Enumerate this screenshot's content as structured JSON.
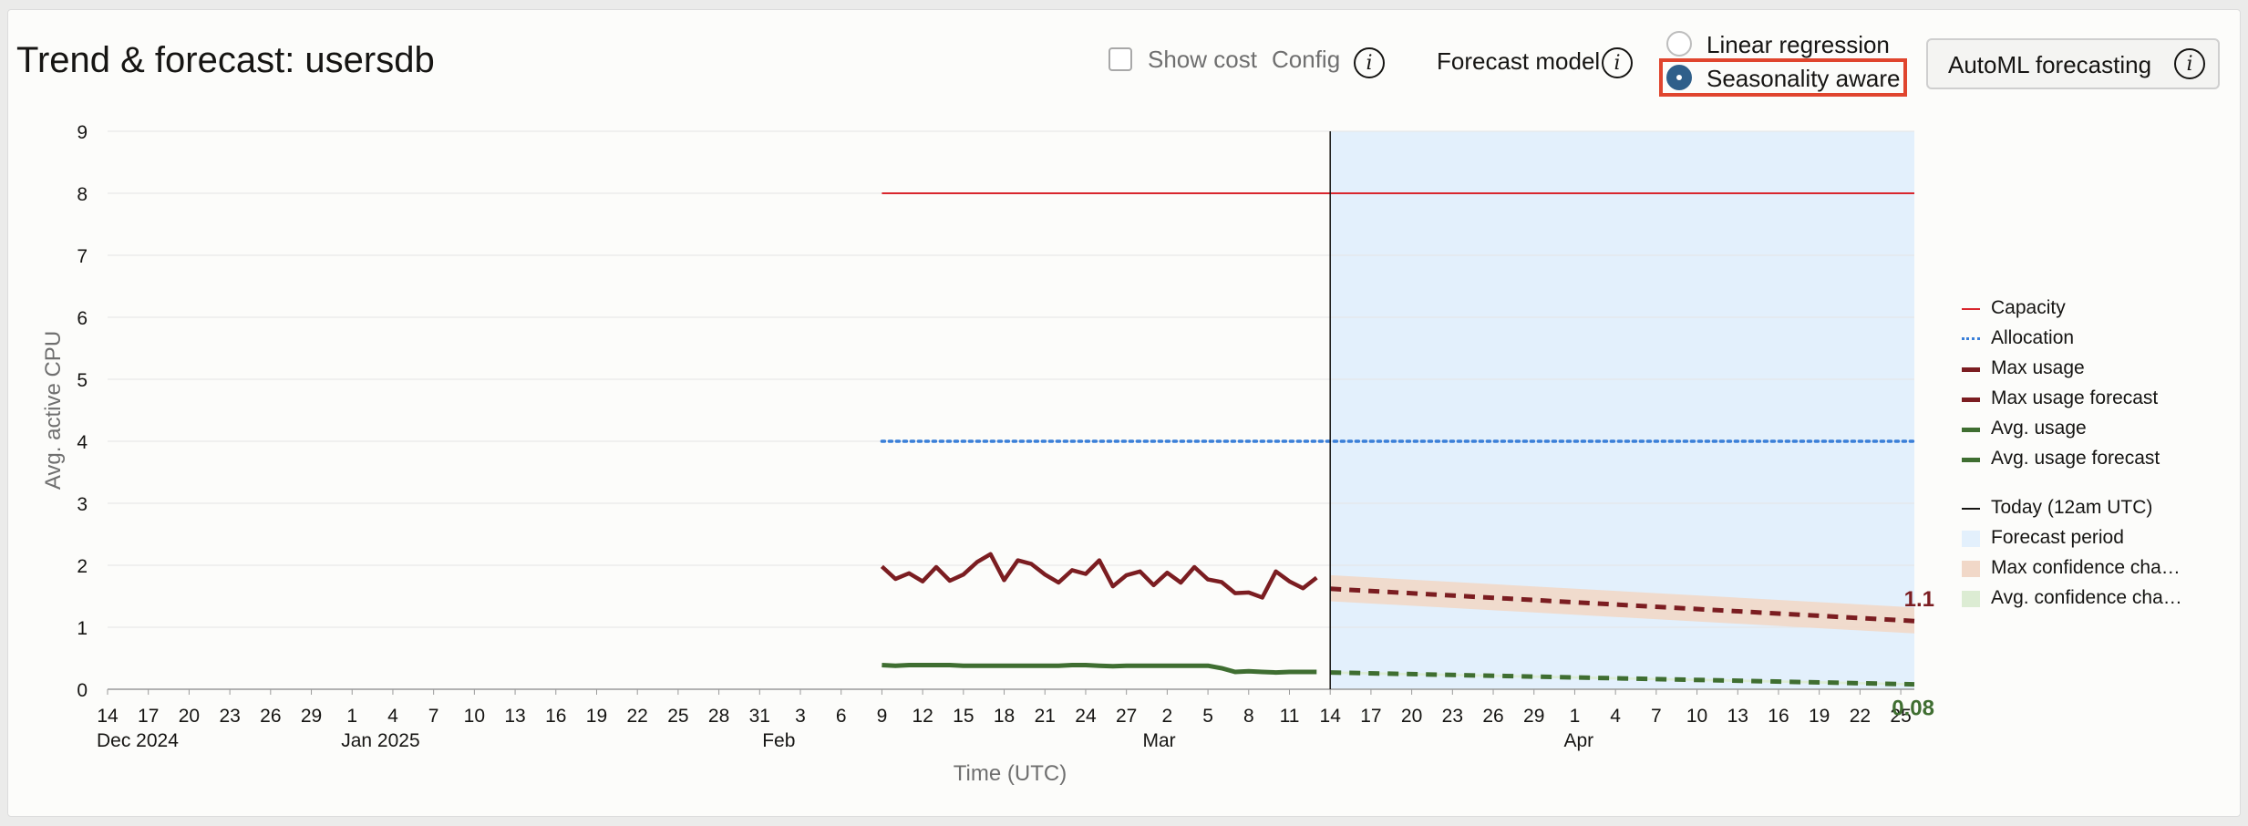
{
  "header": {
    "title": "Trend & forecast: usersdb",
    "show_cost_label": "Show cost",
    "config_label": "Config",
    "forecast_model_label": "Forecast model",
    "radio_linear_label": "Linear regression",
    "radio_seasonality_label": "Seasonality aware",
    "selected_model": "Seasonality aware",
    "automl_button_label": "AutoML forecasting",
    "info_glyph": "i"
  },
  "colors": {
    "capacity": "#d9262d",
    "allocation": "#3a7fd8",
    "max_usage": "#7b1d21",
    "avg_usage": "#3f6e31",
    "forecast_period": "#e3f0fc",
    "max_confidence": "#f1d8c8",
    "avg_confidence": "#dcecd3",
    "today_line": "#161513",
    "selection_highlight": "#e0452e"
  },
  "chart_data": {
    "type": "line",
    "ylabel": "Avg. active CPU",
    "xlabel": "Time (UTC)",
    "ylim": [
      0,
      9
    ],
    "yticks": [
      "0",
      "1",
      "2",
      "3",
      "4",
      "5",
      "6",
      "7",
      "8",
      "9"
    ],
    "x_start_date": "2024-12-14",
    "x_end_date": "2025-04-26",
    "xticks": [
      "14",
      "17",
      "20",
      "23",
      "26",
      "29",
      "1",
      "4",
      "7",
      "10",
      "13",
      "16",
      "19",
      "22",
      "25",
      "28",
      "31",
      "3",
      "6",
      "9",
      "12",
      "15",
      "18",
      "21",
      "24",
      "27",
      "2",
      "5",
      "8",
      "11",
      "14",
      "17",
      "20",
      "23",
      "26",
      "29",
      "1",
      "4",
      "7",
      "10",
      "13",
      "16",
      "19",
      "22",
      "25"
    ],
    "month_labels": [
      {
        "label": "Dec 2024",
        "date": "2024-12-14"
      },
      {
        "label": "Jan 2025",
        "date": "2025-01-01"
      },
      {
        "label": "Feb",
        "date": "2025-02-01"
      },
      {
        "label": "Mar",
        "date": "2025-03-01"
      },
      {
        "label": "Apr",
        "date": "2025-04-01"
      }
    ],
    "today_date": "2025-03-14",
    "forecast_period": {
      "start": "2025-03-14",
      "end": "2025-04-26"
    },
    "grid": true,
    "legend_position": "right",
    "legend": [
      "Capacity",
      "Allocation",
      "Max usage",
      "Max usage forecast",
      "Avg. usage",
      "Avg. usage forecast",
      "Today (12am UTC)",
      "Forecast period",
      "Max confidence cha…",
      "Avg. confidence cha…"
    ],
    "series": [
      {
        "name": "Capacity",
        "style": "solid-thin",
        "points": [
          [
            "2025-02-09",
            8
          ],
          [
            "2025-04-26",
            8
          ]
        ]
      },
      {
        "name": "Allocation",
        "style": "dotted",
        "points": [
          [
            "2025-02-09",
            4
          ],
          [
            "2025-04-26",
            4
          ]
        ]
      },
      {
        "name": "Max usage",
        "style": "solid-thick",
        "points": [
          [
            "2025-02-09",
            1.98
          ],
          [
            "2025-02-10",
            1.78
          ],
          [
            "2025-02-11",
            1.87
          ],
          [
            "2025-02-12",
            1.74
          ],
          [
            "2025-02-13",
            1.97
          ],
          [
            "2025-02-14",
            1.75
          ],
          [
            "2025-02-15",
            1.85
          ],
          [
            "2025-02-16",
            2.05
          ],
          [
            "2025-02-17",
            2.18
          ],
          [
            "2025-02-18",
            1.76
          ],
          [
            "2025-02-19",
            2.08
          ],
          [
            "2025-02-20",
            2.02
          ],
          [
            "2025-02-21",
            1.85
          ],
          [
            "2025-02-22",
            1.72
          ],
          [
            "2025-02-23",
            1.92
          ],
          [
            "2025-02-24",
            1.86
          ],
          [
            "2025-02-25",
            2.08
          ],
          [
            "2025-02-26",
            1.66
          ],
          [
            "2025-02-27",
            1.84
          ],
          [
            "2025-02-28",
            1.9
          ],
          [
            "2025-03-01",
            1.68
          ],
          [
            "2025-03-02",
            1.88
          ],
          [
            "2025-03-03",
            1.72
          ],
          [
            "2025-03-04",
            1.97
          ],
          [
            "2025-03-05",
            1.77
          ],
          [
            "2025-03-06",
            1.73
          ],
          [
            "2025-03-07",
            1.55
          ],
          [
            "2025-03-08",
            1.56
          ],
          [
            "2025-03-09",
            1.48
          ],
          [
            "2025-03-10",
            1.9
          ],
          [
            "2025-03-11",
            1.74
          ],
          [
            "2025-03-12",
            1.63
          ],
          [
            "2025-03-13",
            1.8
          ]
        ]
      },
      {
        "name": "Max usage forecast",
        "style": "dashed",
        "points": [
          [
            "2025-03-14",
            1.62
          ],
          [
            "2025-04-26",
            1.1
          ]
        ]
      },
      {
        "name": "Avg. usage",
        "style": "solid-thick",
        "points": [
          [
            "2025-02-09",
            0.39
          ],
          [
            "2025-02-10",
            0.38
          ],
          [
            "2025-02-11",
            0.39
          ],
          [
            "2025-02-12",
            0.39
          ],
          [
            "2025-02-13",
            0.39
          ],
          [
            "2025-02-14",
            0.39
          ],
          [
            "2025-02-15",
            0.38
          ],
          [
            "2025-02-16",
            0.38
          ],
          [
            "2025-02-17",
            0.38
          ],
          [
            "2025-02-18",
            0.38
          ],
          [
            "2025-02-19",
            0.38
          ],
          [
            "2025-02-20",
            0.38
          ],
          [
            "2025-02-21",
            0.38
          ],
          [
            "2025-02-22",
            0.38
          ],
          [
            "2025-02-23",
            0.39
          ],
          [
            "2025-02-24",
            0.39
          ],
          [
            "2025-02-25",
            0.38
          ],
          [
            "2025-02-26",
            0.37
          ],
          [
            "2025-02-27",
            0.38
          ],
          [
            "2025-02-28",
            0.38
          ],
          [
            "2025-03-01",
            0.38
          ],
          [
            "2025-03-02",
            0.38
          ],
          [
            "2025-03-03",
            0.38
          ],
          [
            "2025-03-04",
            0.38
          ],
          [
            "2025-03-05",
            0.38
          ],
          [
            "2025-03-06",
            0.34
          ],
          [
            "2025-03-07",
            0.28
          ],
          [
            "2025-03-08",
            0.29
          ],
          [
            "2025-03-09",
            0.28
          ],
          [
            "2025-03-10",
            0.27
          ],
          [
            "2025-03-11",
            0.28
          ],
          [
            "2025-03-12",
            0.28
          ],
          [
            "2025-03-13",
            0.28
          ]
        ]
      },
      {
        "name": "Avg. usage forecast",
        "style": "dashed",
        "points": [
          [
            "2025-03-14",
            0.27
          ],
          [
            "2025-04-26",
            0.08
          ]
        ]
      }
    ],
    "confidence_bands": [
      {
        "name": "Max confidence cha…",
        "start": "2025-03-14",
        "end": "2025-04-26",
        "lower": [
          1.42,
          0.9
        ],
        "upper": [
          1.84,
          1.32
        ]
      },
      {
        "name": "Avg. confidence cha…",
        "start": "2025-03-14",
        "end": "2025-04-26",
        "lower": [
          0.25,
          0.06
        ],
        "upper": [
          0.29,
          0.1
        ]
      }
    ],
    "end_labels": [
      {
        "series": "Max usage forecast",
        "text": "1.1"
      },
      {
        "series": "Avg. usage forecast",
        "text": "0.08"
      }
    ]
  }
}
